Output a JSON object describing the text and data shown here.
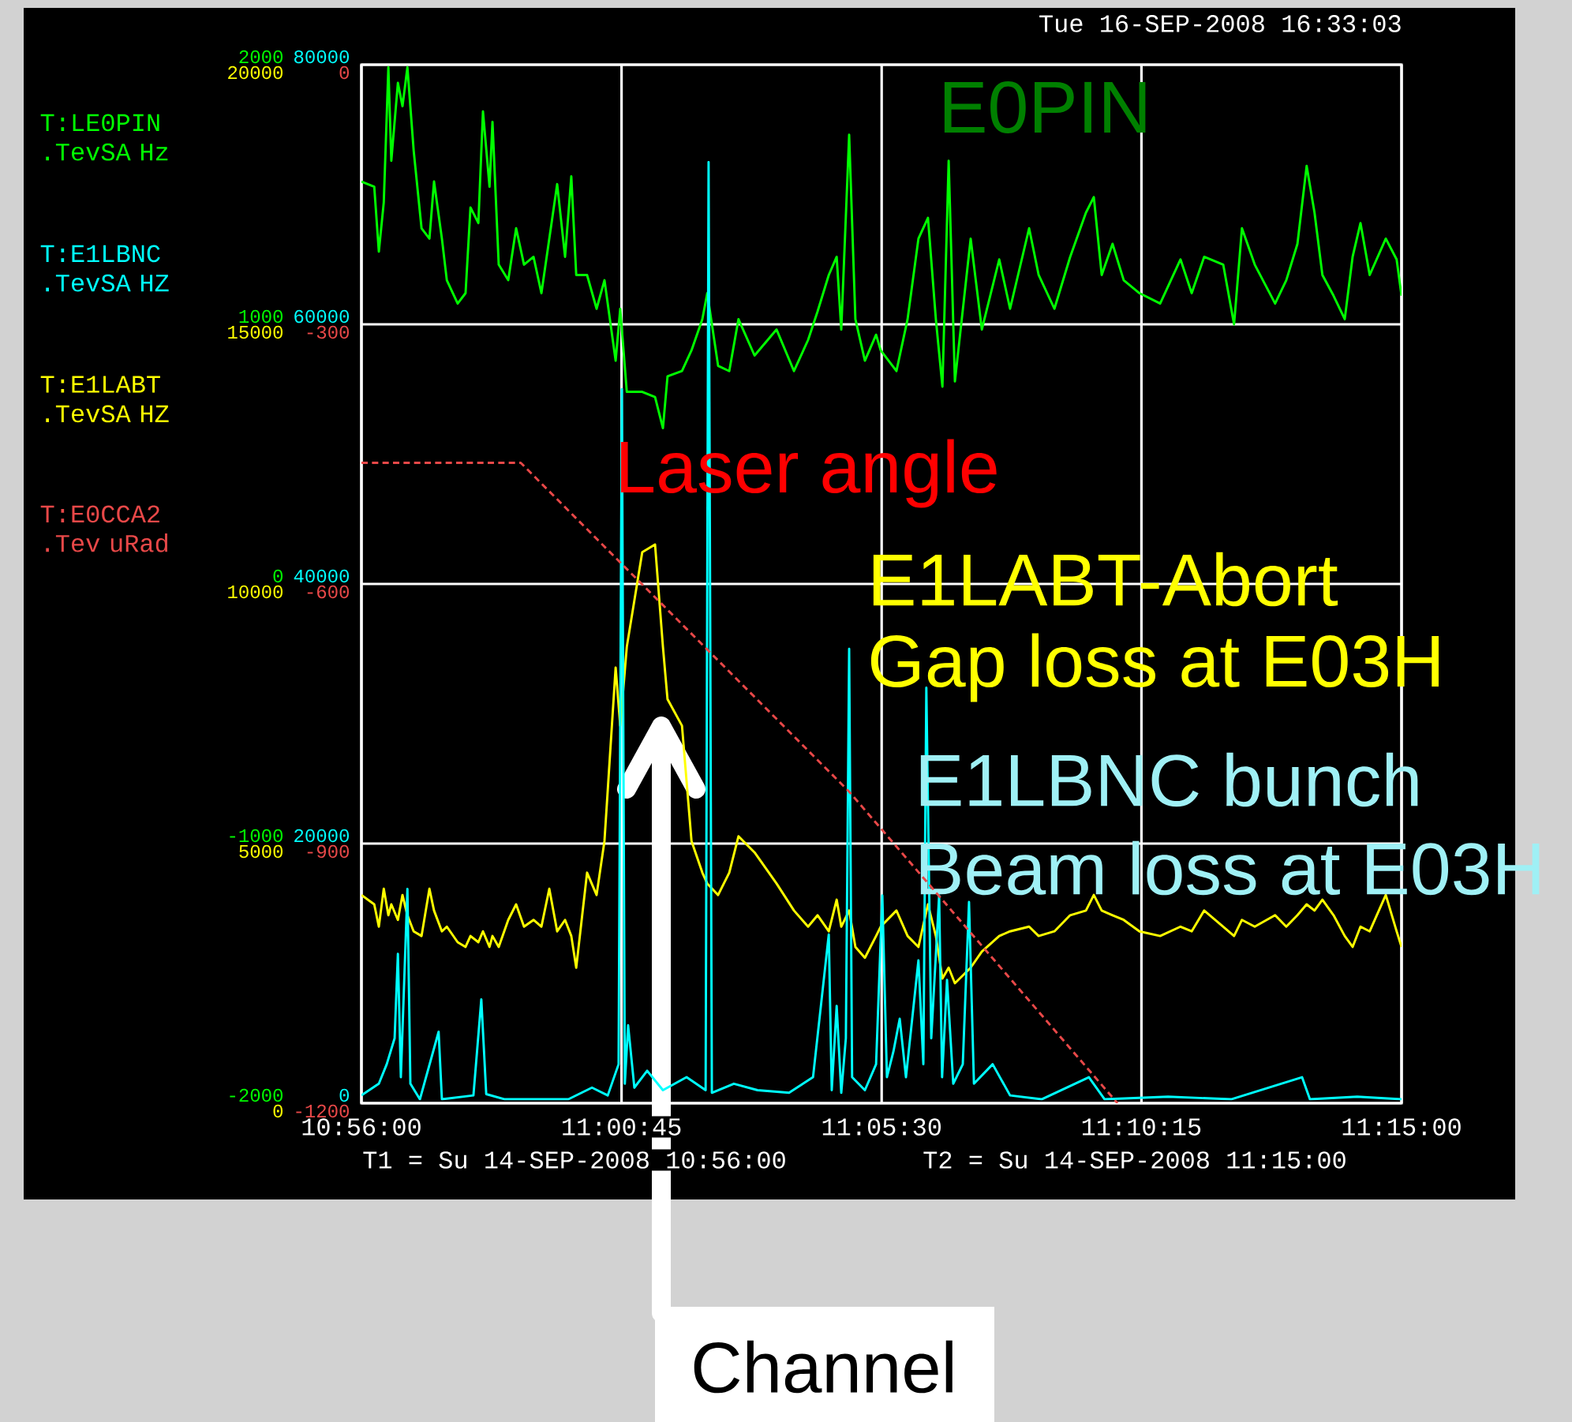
{
  "chart_data": [
    {
      "type": "line",
      "annotations": [
        "Tue 16-SEP-2008 16:33:03",
        "E0PIN",
        "Laser angle",
        "E1LABT-Abort",
        "Gap loss at E03H",
        "E1LBNC bunch",
        "Beam loss at E03H",
        "T1 = Su 14-SEP-2008 10:56:00",
        "T2 = Su 14-SEP-2008 11:15:00",
        "Channel"
      ],
      "x": [
        10.9333,
        10.9372,
        10.9386,
        10.9401,
        10.9415,
        10.9424,
        10.9444,
        10.9458,
        10.9473,
        10.9492,
        10.9516,
        10.954,
        10.9554,
        10.9578,
        10.9593,
        10.9626,
        10.965,
        10.9665,
        10.9689,
        10.9703,
        10.9723,
        10.9732,
        10.9751,
        10.978,
        10.9804,
        10.9828,
        10.9857,
        10.9881,
        10.9905,
        10.9929,
        10.9953,
        10.9972,
        10.9987,
        11.002,
        11.0049,
        11.0073,
        11.0107,
        11.0121,
        11.0141,
        11.0188,
        11.0227,
        11.0251,
        11.0265,
        11.0309,
        11.0338,
        11.0371,
        11.0386,
        11.0419,
        11.0453,
        11.0481,
        11.053,
        11.0597,
        11.065,
        11.0693,
        11.0722,
        11.0756,
        11.078,
        11.0794,
        11.0818,
        11.0837,
        11.0866,
        11.09,
        11.0914,
        11.0962,
        11.0996,
        11.1029,
        11.1058,
        11.1082,
        11.1102,
        11.1121,
        11.114,
        11.1188,
        11.1222,
        11.1275,
        11.1308,
        11.1366,
        11.1395,
        11.1443,
        11.1491,
        11.1539,
        11.1563,
        11.1587,
        11.162,
        11.1654,
        11.1702,
        11.1765,
        11.1827,
        11.1861,
        11.1899,
        11.1957,
        11.199,
        11.2014,
        11.2053,
        11.2115,
        11.2149,
        11.2183,
        11.2211,
        11.2235,
        11.2259,
        11.2293,
        11.2327,
        11.2351,
        11.2375,
        11.2403,
        11.2452,
        11.2485,
        11.25
      ],
      "xlim": [
        10.9333,
        11.25
      ],
      "xticks": [
        {
          "value": 10.9333,
          "label": "10:56:00"
        },
        {
          "value": 11.0125,
          "label": "11:00:45"
        },
        {
          "value": 11.0917,
          "label": "11:05:30"
        },
        {
          "value": 11.1708,
          "label": "11:10:15"
        },
        {
          "value": 11.25,
          "label": "11:15:00"
        }
      ],
      "ylim": [
        -2000,
        2000
      ],
      "yticks": [
        -2000,
        -1000,
        0,
        1000,
        2000
      ],
      "y2lim": [
        0,
        80000
      ],
      "y2ticks": [
        0,
        20000,
        40000,
        60000,
        80000
      ],
      "y3lim": [
        0,
        20000
      ],
      "y3ticks": [
        0,
        5000,
        10000,
        15000,
        20000
      ],
      "grid": true,
      "series": [
        {
          "name": "T:LE0PIN .TevSA Hz",
          "color": "#00ff00",
          "axis": "y",
          "values": [
            1550,
            1530,
            1280,
            1470,
            1990,
            1630,
            1930,
            1840,
            1990,
            1670,
            1370,
            1330,
            1550,
            1330,
            1170,
            1080,
            1120,
            1450,
            1390,
            1820,
            1530,
            1780,
            1230,
            1170,
            1370,
            1230,
            1260,
            1120,
            1330,
            1540,
            1260,
            1570,
            1190,
            1190,
            1060,
            1170,
            860,
            1060,
            740,
            740,
            720,
            600,
            800,
            820,
            900,
            1020,
            1120,
            840,
            820,
            1020,
            880,
            980,
            820,
            940,
            1050,
            1190,
            1260,
            980,
            1730,
            1020,
            860,
            960,
            900,
            820,
            1020,
            1330,
            1410,
            1020,
            760,
            1630,
            780,
            1330,
            980,
            1250,
            1060,
            1370,
            1190,
            1060,
            1260,
            1430,
            1490,
            1190,
            1310,
            1170,
            1120,
            1080,
            1250,
            1120,
            1260,
            1230,
            1000,
            1370,
            1230,
            1080,
            1170,
            1310,
            1610,
            1430,
            1190,
            1110,
            1020,
            1260,
            1390,
            1190,
            1330,
            1250,
            1110
          ]
        },
        {
          "name": "T:E1LABT .TevSA HZ",
          "color": "#ffff00",
          "axis": "y3",
          "values": [
            4010,
            3830,
            3400,
            4130,
            3620,
            3830,
            3530,
            4010,
            3620,
            3310,
            3220,
            4130,
            3710,
            3310,
            3400,
            3100,
            3010,
            3220,
            3100,
            3310,
            3010,
            3220,
            3010,
            3530,
            3830,
            3400,
            3530,
            3400,
            4130,
            3310,
            3530,
            3220,
            2610,
            4440,
            4010,
            5050,
            8390,
            7270,
            8790,
            10610,
            10760,
            8790,
            7780,
            7270,
            5050,
            4440,
            4230,
            4010,
            4440,
            5140,
            4830,
            4230,
            3710,
            3400,
            3620,
            3310,
            3920,
            3400,
            3710,
            3010,
            2800,
            3220,
            3400,
            3710,
            3220,
            3010,
            3830,
            3220,
            2400,
            2610,
            2310,
            2610,
            2920,
            3220,
            3310,
            3400,
            3220,
            3310,
            3620,
            3710,
            4010,
            3710,
            3620,
            3530,
            3310,
            3220,
            3400,
            3310,
            3710,
            3400,
            3220,
            3530,
            3400,
            3620,
            3400,
            3620,
            3830,
            3710,
            3920,
            3620,
            3220,
            3010,
            3400,
            3310,
            4010,
            3310,
            3010
          ]
        },
        {
          "name": "T:E1LBNC .TevSA HZ",
          "color": "#00ffff",
          "axis": "y2",
          "x": [
            10.9333,
            10.9386,
            10.941,
            10.9434,
            10.9444,
            10.9453,
            10.9473,
            10.9482,
            10.9511,
            10.9568,
            10.9578,
            10.9674,
            10.9698,
            10.9713,
            10.977,
            10.9963,
            11.0035,
            11.0083,
            11.0116,
            11.0126,
            11.0135,
            11.0145,
            11.0164,
            11.0203,
            11.0251,
            11.0323,
            11.0381,
            11.039,
            11.04,
            11.0467,
            11.0539,
            11.0635,
            11.0708,
            11.0756,
            11.0765,
            11.078,
            11.0794,
            11.0808,
            11.0818,
            11.0827,
            11.0866,
            11.09,
            11.0919,
            11.0933,
            11.0953,
            11.0972,
            11.0991,
            11.1029,
            11.1044,
            11.1053,
            11.1068,
            11.1092,
            11.1101,
            11.1116,
            11.1135,
            11.1164,
            11.1183,
            11.1198,
            11.1255,
            11.1308,
            11.1404,
            11.1548,
            11.1596,
            11.1789,
            11.1981,
            11.2197,
            11.2221,
            11.2365,
            11.25
          ],
          "values": [
            600,
            1500,
            3000,
            5000,
            11500,
            2000,
            16500,
            1500,
            300,
            5500,
            300,
            600,
            8000,
            700,
            300,
            300,
            1200,
            600,
            3000,
            55000,
            1500,
            6000,
            1200,
            2500,
            1000,
            2000,
            1000,
            72500,
            800,
            1500,
            1000,
            800,
            2000,
            13000,
            1000,
            7500,
            800,
            5000,
            35000,
            2000,
            1000,
            3000,
            16000,
            2000,
            4000,
            6500,
            2000,
            11000,
            3000,
            32000,
            5000,
            16000,
            2000,
            9500,
            1500,
            3000,
            15500,
            1500,
            3000,
            600,
            300,
            2000,
            300,
            500,
            300,
            2000,
            300,
            500,
            300
          ]
        }
      ]
    },
    {
      "type": "line",
      "tick_labels": "y",
      "x": [
        10.9333,
        10.9818,
        11.0818,
        11.1635
      ],
      "xlim": [
        10.9333,
        11.25
      ],
      "ylim": [
        -1200,
        0
      ],
      "yticks": [
        -1200,
        -900,
        -600,
        -300,
        0
      ],
      "series": [
        {
          "name": "T:E0CCA2 .Tev uRad",
          "color": "#e84848",
          "line_style": "dashed",
          "values": [
            -460,
            -460,
            -840,
            -1200
          ]
        }
      ]
    }
  ]
}
